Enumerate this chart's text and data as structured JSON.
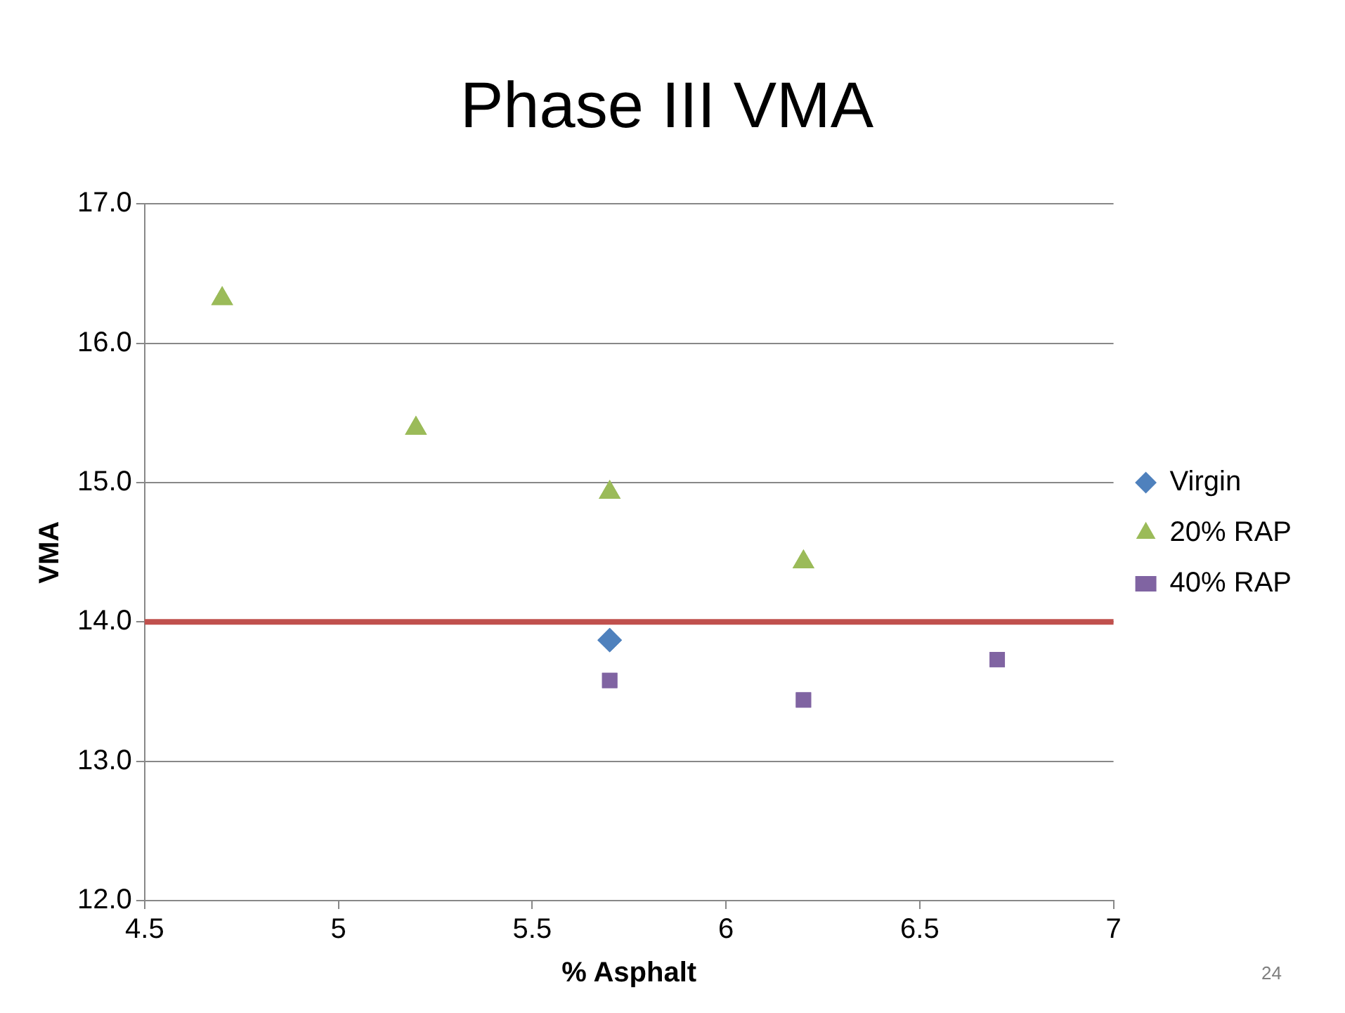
{
  "chart_data": {
    "type": "scatter",
    "title": "Phase III VMA",
    "xlabel": "% Asphalt",
    "ylabel": "VMA",
    "series": [
      {
        "name": "Virgin",
        "color": "#4f81bd",
        "marker": "diamond",
        "x": [
          5.7
        ],
        "values": [
          13.87
        ]
      },
      {
        "name": "20% RAP",
        "color": "#9bbb59",
        "marker": "triangle",
        "x": [
          4.7,
          5.2,
          5.7,
          6.2
        ],
        "values": [
          16.32,
          15.39,
          14.93,
          14.43
        ]
      },
      {
        "name": "40% RAP",
        "color": "#8064a2",
        "marker": "square",
        "x": [
          5.7,
          6.2,
          6.7
        ],
        "values": [
          13.58,
          13.44,
          13.73
        ]
      }
    ],
    "ref_lines": [
      {
        "axis": "y",
        "value": 14,
        "color": "#c0504d"
      }
    ],
    "xlim": [
      4.5,
      7
    ],
    "xticks": [
      4.5,
      5,
      5.5,
      6,
      6.5,
      7
    ],
    "ylim": [
      12,
      17
    ],
    "yticks": [
      {
        "value": 12,
        "label": "12.0"
      },
      {
        "value": 13,
        "label": "13.0"
      },
      {
        "value": 14,
        "label": "14.0"
      },
      {
        "value": 15,
        "label": "15.0"
      },
      {
        "value": 16,
        "label": "16.0"
      },
      {
        "value": 17,
        "label": "17.0"
      }
    ],
    "grid": "y",
    "legend": "right",
    "annotations": [
      "24"
    ]
  }
}
